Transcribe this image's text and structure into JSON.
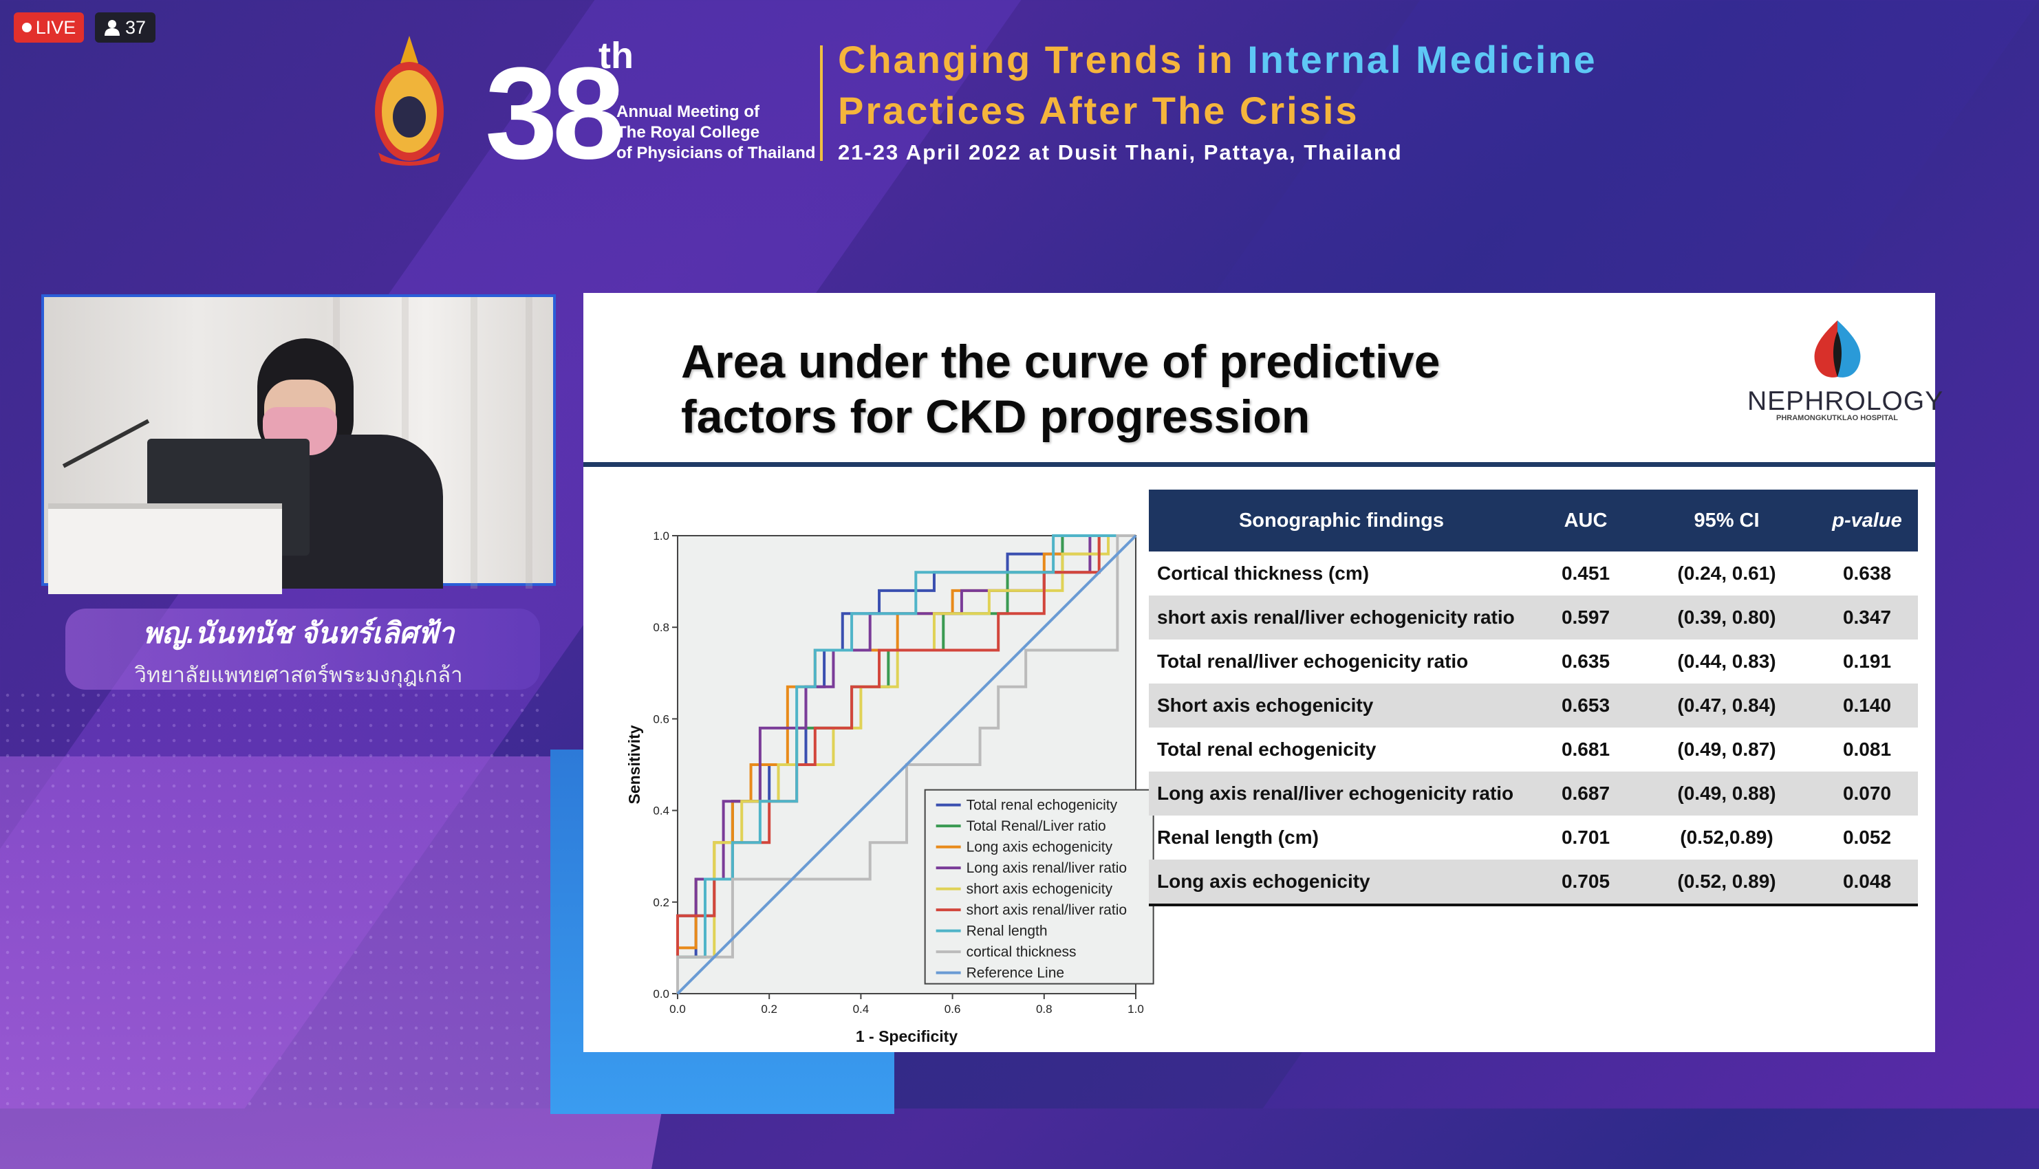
{
  "stream": {
    "live_label": "LIVE",
    "viewer_count": "37"
  },
  "header": {
    "number": "38",
    "ordinal": "th",
    "meeting_lines": [
      "Annual Meeting of",
      "The Royal College",
      "of Physicians of Thailand"
    ],
    "theme_part1": "Changing Trends in ",
    "theme_part2": "Internal Medicine",
    "theme_line2": "Practices After The Crisis",
    "date_venue": "21-23 April 2022 at Dusit Thani, Pattaya, Thailand"
  },
  "speaker": {
    "name": "พญ.นันทนัช จันทร์เลิศฟ้า",
    "affiliation": "วิทยาลัยแพทยศาสตร์พระมงกุฎเกล้า"
  },
  "slide": {
    "title_line1": "Area under the curve of predictive",
    "title_line2": "factors for CKD progression",
    "logo_text": "NEPHROLOGY",
    "logo_subtext": "PHRAMONGKUTKLAO HOSPITAL"
  },
  "table": {
    "headers": [
      "Sonographic findings",
      "AUC",
      "95% CI",
      "p-value"
    ],
    "rows": [
      [
        "Cortical thickness (cm)",
        "0.451",
        "(0.24, 0.61)",
        "0.638"
      ],
      [
        "short axis renal/liver echogenicity ratio",
        "0.597",
        "(0.39, 0.80)",
        "0.347"
      ],
      [
        "Total renal/liver echogenicity ratio",
        "0.635",
        "(0.44, 0.83)",
        "0.191"
      ],
      [
        "Short axis echogenicity",
        "0.653",
        "(0.47, 0.84)",
        "0.140"
      ],
      [
        "Total renal echogenicity",
        "0.681",
        "(0.49, 0.87)",
        "0.081"
      ],
      [
        "Long axis renal/liver echogenicity ratio",
        "0.687",
        "(0.49, 0.88)",
        "0.070"
      ],
      [
        "Renal length (cm)",
        "0.701",
        "(0.52,0.89)",
        "0.052"
      ],
      [
        "Long axis echogenicity",
        "0.705",
        "(0.52, 0.89)",
        "0.048"
      ]
    ]
  },
  "chart_data": {
    "type": "line",
    "xlabel": "1 - Specificity",
    "ylabel": "Sensitivity",
    "xlim": [
      0,
      1
    ],
    "ylim": [
      0,
      1
    ],
    "ticks": [
      "0.0",
      "0.2",
      "0.4",
      "0.6",
      "0.8",
      "1.0"
    ],
    "legend_position": "bottom-right",
    "series": [
      {
        "name": "Total renal echogenicity",
        "color": "#3a4fb0",
        "x": [
          0,
          0,
          0.04,
          0.04,
          0.08,
          0.08,
          0.12,
          0.12,
          0.2,
          0.2,
          0.28,
          0.28,
          0.32,
          0.32,
          0.36,
          0.36,
          0.44,
          0.44,
          0.56,
          0.56,
          0.72,
          0.72,
          0.84,
          0.84,
          0.92,
          0.92,
          1
        ],
        "y": [
          0,
          0.08,
          0.08,
          0.17,
          0.17,
          0.25,
          0.25,
          0.42,
          0.42,
          0.5,
          0.5,
          0.67,
          0.67,
          0.75,
          0.75,
          0.83,
          0.83,
          0.88,
          0.88,
          0.92,
          0.92,
          0.96,
          0.96,
          1,
          1,
          1,
          1
        ]
      },
      {
        "name": "Total Renal/Liver ratio",
        "color": "#3a9a52",
        "x": [
          0,
          0,
          0.04,
          0.04,
          0.12,
          0.12,
          0.18,
          0.18,
          0.26,
          0.26,
          0.38,
          0.38,
          0.46,
          0.46,
          0.58,
          0.58,
          0.72,
          0.72,
          0.84,
          0.84,
          0.88,
          0.88,
          1
        ],
        "y": [
          0,
          0.17,
          0.17,
          0.25,
          0.25,
          0.42,
          0.42,
          0.5,
          0.5,
          0.58,
          0.58,
          0.67,
          0.67,
          0.75,
          0.75,
          0.83,
          0.83,
          0.92,
          0.92,
          1,
          1,
          1,
          1
        ]
      },
      {
        "name": "Long axis echogenicity",
        "color": "#e88a1a",
        "x": [
          0,
          0,
          0.04,
          0.04,
          0.08,
          0.08,
          0.12,
          0.12,
          0.16,
          0.16,
          0.24,
          0.24,
          0.3,
          0.3,
          0.36,
          0.36,
          0.48,
          0.48,
          0.6,
          0.6,
          0.8,
          0.8,
          0.92,
          0.92,
          1
        ],
        "y": [
          0,
          0.1,
          0.1,
          0.25,
          0.25,
          0.33,
          0.33,
          0.42,
          0.42,
          0.5,
          0.5,
          0.67,
          0.67,
          0.75,
          0.75,
          0.75,
          0.75,
          0.83,
          0.83,
          0.88,
          0.88,
          0.96,
          0.96,
          1,
          1
        ]
      },
      {
        "name": "Long axis renal/liver ratio",
        "color": "#7a3c98",
        "x": [
          0,
          0,
          0.04,
          0.04,
          0.1,
          0.1,
          0.18,
          0.18,
          0.28,
          0.28,
          0.34,
          0.34,
          0.42,
          0.42,
          0.5,
          0.5,
          0.62,
          0.62,
          0.8,
          0.8,
          0.9,
          0.9,
          1
        ],
        "y": [
          0,
          0.17,
          0.17,
          0.25,
          0.25,
          0.42,
          0.42,
          0.58,
          0.58,
          0.67,
          0.67,
          0.75,
          0.75,
          0.83,
          0.83,
          0.83,
          0.83,
          0.88,
          0.88,
          0.92,
          0.92,
          1,
          1
        ]
      },
      {
        "name": "short axis echogenicity",
        "color": "#e0d256",
        "x": [
          0,
          0,
          0.08,
          0.08,
          0.14,
          0.14,
          0.22,
          0.22,
          0.34,
          0.34,
          0.4,
          0.4,
          0.48,
          0.48,
          0.56,
          0.56,
          0.68,
          0.68,
          0.84,
          0.84,
          0.94,
          0.94,
          1
        ],
        "y": [
          0,
          0.08,
          0.08,
          0.33,
          0.33,
          0.42,
          0.42,
          0.5,
          0.5,
          0.58,
          0.58,
          0.67,
          0.67,
          0.75,
          0.75,
          0.83,
          0.83,
          0.88,
          0.88,
          0.96,
          0.96,
          1,
          1
        ]
      },
      {
        "name": "short axis renal/liver ratio",
        "color": "#d2463c",
        "x": [
          0,
          0,
          0.08,
          0.08,
          0.12,
          0.12,
          0.2,
          0.2,
          0.26,
          0.26,
          0.3,
          0.3,
          0.38,
          0.38,
          0.44,
          0.44,
          0.54,
          0.54,
          0.7,
          0.7,
          0.8,
          0.8,
          0.92,
          0.92,
          1
        ],
        "y": [
          0,
          0.17,
          0.17,
          0.25,
          0.25,
          0.33,
          0.33,
          0.42,
          0.42,
          0.5,
          0.5,
          0.58,
          0.58,
          0.67,
          0.67,
          0.75,
          0.75,
          0.75,
          0.75,
          0.83,
          0.83,
          0.92,
          0.92,
          1,
          1
        ]
      },
      {
        "name": "Renal length",
        "color": "#4fb4c8",
        "x": [
          0,
          0,
          0.06,
          0.06,
          0.12,
          0.12,
          0.18,
          0.18,
          0.26,
          0.26,
          0.3,
          0.3,
          0.38,
          0.38,
          0.52,
          0.52,
          0.58,
          0.58,
          0.72,
          0.72,
          0.82,
          0.82,
          0.96,
          0.96,
          1
        ],
        "y": [
          0,
          0.08,
          0.08,
          0.25,
          0.25,
          0.33,
          0.33,
          0.42,
          0.42,
          0.67,
          0.67,
          0.75,
          0.75,
          0.83,
          0.83,
          0.92,
          0.92,
          0.92,
          0.92,
          0.92,
          0.92,
          1,
          1,
          1,
          1
        ]
      },
      {
        "name": "cortical thickness",
        "color": "#bbbbbb",
        "x": [
          0,
          0,
          0.12,
          0.12,
          0.32,
          0.32,
          0.42,
          0.42,
          0.5,
          0.5,
          0.56,
          0.56,
          0.66,
          0.66,
          0.7,
          0.7,
          0.76,
          0.76,
          0.88,
          0.88,
          0.96,
          0.96,
          1
        ],
        "y": [
          0,
          0.08,
          0.08,
          0.25,
          0.25,
          0.25,
          0.25,
          0.33,
          0.33,
          0.5,
          0.5,
          0.5,
          0.5,
          0.58,
          0.58,
          0.67,
          0.67,
          0.75,
          0.75,
          0.75,
          0.75,
          1,
          1
        ]
      },
      {
        "name": "Reference Line",
        "color": "#6a9bd4",
        "x": [
          0,
          1
        ],
        "y": [
          0,
          1
        ]
      }
    ]
  }
}
